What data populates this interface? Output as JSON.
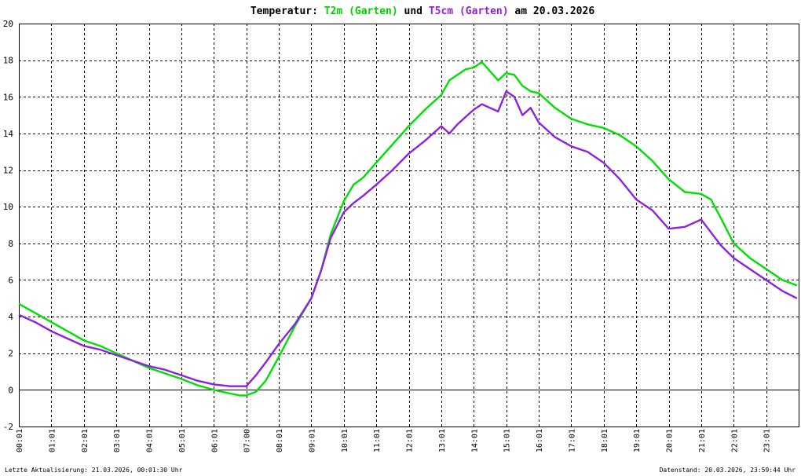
{
  "chart_data": {
    "type": "line",
    "title": {
      "prefix": "Temperatur: ",
      "series1": "T2m (Garten)",
      "joiner": " und ",
      "series2": "T5cm (Garten)",
      "suffix": " am 20.03.2026"
    },
    "xlabel": "",
    "ylabel": "",
    "ylim": [
      -2,
      20
    ],
    "xlim": [
      0,
      24
    ],
    "grid": true,
    "y_ticks": [
      -2,
      0,
      2,
      4,
      6,
      8,
      10,
      12,
      14,
      16,
      18,
      20
    ],
    "x_ticks": [
      {
        "x": 0,
        "label": "00:01"
      },
      {
        "x": 1,
        "label": "01:01"
      },
      {
        "x": 2,
        "label": "02:01"
      },
      {
        "x": 3,
        "label": "03:01"
      },
      {
        "x": 4,
        "label": "04:01"
      },
      {
        "x": 5,
        "label": "05:01"
      },
      {
        "x": 6,
        "label": "06:01"
      },
      {
        "x": 7,
        "label": "07:00"
      },
      {
        "x": 8,
        "label": "08:01"
      },
      {
        "x": 9,
        "label": "09:01"
      },
      {
        "x": 10,
        "label": "10:01"
      },
      {
        "x": 11,
        "label": "11:01"
      },
      {
        "x": 12,
        "label": "12:01"
      },
      {
        "x": 13,
        "label": "13:01"
      },
      {
        "x": 14,
        "label": "14:01"
      },
      {
        "x": 15,
        "label": "15:01"
      },
      {
        "x": 16,
        "label": "16:01"
      },
      {
        "x": 17,
        "label": "17:01"
      },
      {
        "x": 18,
        "label": "18:01"
      },
      {
        "x": 19,
        "label": "19:01"
      },
      {
        "x": 20,
        "label": "20:01"
      },
      {
        "x": 21,
        "label": "21:01"
      },
      {
        "x": 22,
        "label": "22:01"
      },
      {
        "x": 23,
        "label": "23:01"
      }
    ],
    "series": [
      {
        "name": "T2m (Garten)",
        "color": "#00e000",
        "x": [
          0,
          0.5,
          1,
          1.5,
          2,
          2.5,
          3,
          3.5,
          4,
          4.5,
          5,
          5.5,
          6,
          6.5,
          6.8,
          7,
          7.3,
          7.6,
          8,
          8.5,
          9,
          9.3,
          9.6,
          10,
          10.3,
          10.6,
          11,
          11.5,
          12,
          12.5,
          13,
          13.25,
          13.5,
          13.75,
          14,
          14.25,
          14.5,
          14.75,
          15,
          15.25,
          15.5,
          15.75,
          16,
          16.5,
          17,
          17.5,
          18,
          18.5,
          19,
          19.5,
          20,
          20.5,
          21,
          21.3,
          21.6,
          22,
          22.5,
          23,
          23.5,
          23.95
        ],
        "values": [
          4.7,
          4.2,
          3.7,
          3.2,
          2.7,
          2.4,
          2.0,
          1.6,
          1.2,
          0.9,
          0.6,
          0.25,
          0.0,
          -0.2,
          -0.3,
          -0.3,
          -0.1,
          0.5,
          1.8,
          3.5,
          5.0,
          6.5,
          8.5,
          10.3,
          11.2,
          11.6,
          12.4,
          13.4,
          14.4,
          15.3,
          16.1,
          16.9,
          17.2,
          17.5,
          17.6,
          17.9,
          17.4,
          16.9,
          17.3,
          17.2,
          16.6,
          16.3,
          16.2,
          15.4,
          14.8,
          14.5,
          14.3,
          13.9,
          13.3,
          12.5,
          11.5,
          10.8,
          10.7,
          10.4,
          9.4,
          8.0,
          7.2,
          6.6,
          6.0,
          5.7
        ]
      },
      {
        "name": "T5cm (Garten)",
        "color": "#9020e0",
        "x": [
          0,
          0.5,
          1,
          1.5,
          2,
          2.5,
          3,
          3.5,
          4,
          4.5,
          5,
          5.5,
          6,
          6.5,
          7,
          7.3,
          7.6,
          8,
          8.5,
          9,
          9.3,
          9.6,
          10,
          10.3,
          10.6,
          11,
          11.5,
          12,
          12.5,
          13,
          13.25,
          13.5,
          13.75,
          14,
          14.25,
          14.5,
          14.75,
          15,
          15.25,
          15.5,
          15.75,
          16,
          16.5,
          17,
          17.5,
          18,
          18.5,
          19,
          19.5,
          20,
          20.5,
          21,
          21.3,
          21.6,
          22,
          22.5,
          23,
          23.5,
          23.95
        ],
        "values": [
          4.1,
          3.7,
          3.2,
          2.8,
          2.4,
          2.2,
          1.9,
          1.6,
          1.3,
          1.1,
          0.8,
          0.5,
          0.3,
          0.2,
          0.2,
          0.8,
          1.5,
          2.5,
          3.6,
          5.0,
          6.5,
          8.3,
          9.7,
          10.2,
          10.6,
          11.2,
          12.0,
          12.9,
          13.6,
          14.4,
          14.0,
          14.5,
          14.9,
          15.3,
          15.6,
          15.4,
          15.2,
          16.3,
          16.0,
          15.0,
          15.4,
          14.6,
          13.8,
          13.3,
          13.0,
          12.4,
          11.5,
          10.4,
          9.8,
          8.8,
          8.9,
          9.3,
          8.6,
          7.9,
          7.2,
          6.6,
          6.0,
          5.4,
          5.0
        ]
      }
    ],
    "footer_left": "Letzte Aktualisierung: 21.03.2026, 00:01:30 Uhr",
    "footer_right": "Datenstand: 20.03.2026, 23:59:44 Uhr"
  }
}
